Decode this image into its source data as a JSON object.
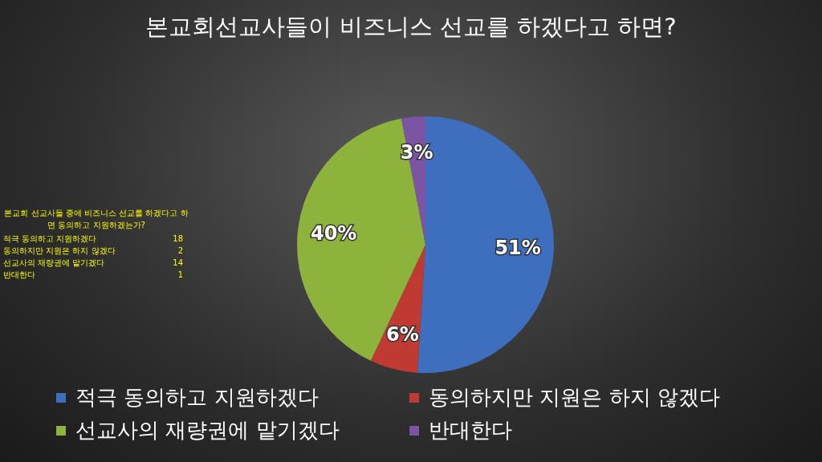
{
  "chart_data": [
    {
      "type": "pie",
      "title": "본교회선교사들이 비즈니스 선교를 하겠다고 하면?",
      "categories": [
        "적극 동의하고 지원하겠다",
        "동의하지만 지원은 하지 않겠다",
        "선교사의 재량권에 맡기겠다",
        "반대한다"
      ],
      "values": [
        51,
        6,
        40,
        3
      ],
      "value_labels": [
        "51%",
        "6%",
        "40%",
        "3%"
      ],
      "colors": [
        "#3e6fbf",
        "#be3a33",
        "#8db33d",
        "#7b55a3"
      ],
      "legend": "bottom"
    },
    {
      "type": "other",
      "title": "본교회 선교사들 중에 비즈니스 선교를 하겠다고 하면 동의하고 지원하겠는가?",
      "categories": [
        "적극 동의하고 지원하겠다",
        "동의하지만 지원은 하지 않겠다",
        "선교사의 재량권에 맡기겠다",
        "반대한다"
      ],
      "values": [
        18,
        2,
        14,
        1
      ],
      "data_labels": true
    }
  ]
}
